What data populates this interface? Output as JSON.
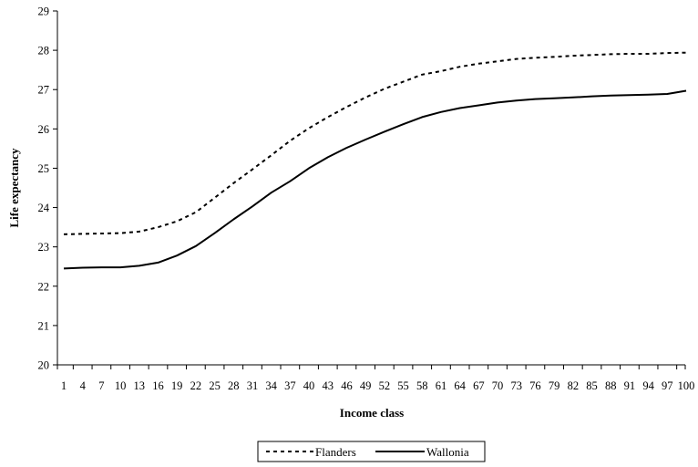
{
  "chart_data": {
    "type": "line",
    "xlabel": "Income class",
    "ylabel": "Life expectancy",
    "xlim": [
      1,
      100
    ],
    "ylim": [
      20,
      29
    ],
    "x_ticks": [
      "1",
      "4",
      "7",
      "10",
      "13",
      "16",
      "19",
      "22",
      "25",
      "28",
      "31",
      "34",
      "37",
      "40",
      "43",
      "46",
      "49",
      "52",
      "55",
      "58",
      "61",
      "64",
      "67",
      "70",
      "73",
      "76",
      "79",
      "82",
      "85",
      "88",
      "91",
      "94",
      "97",
      "100"
    ],
    "y_ticks": [
      "20",
      "21",
      "22",
      "23",
      "24",
      "25",
      "26",
      "27",
      "28",
      "29"
    ],
    "grid": false,
    "legend_position": "bottom",
    "x": [
      1,
      4,
      7,
      10,
      13,
      16,
      19,
      22,
      25,
      28,
      31,
      34,
      37,
      40,
      43,
      46,
      49,
      52,
      55,
      58,
      61,
      64,
      67,
      70,
      73,
      76,
      79,
      82,
      85,
      88,
      91,
      94,
      97,
      100
    ],
    "series": [
      {
        "name": "Flanders",
        "line_style": "dashed",
        "color": "#000000",
        "values": [
          23.32,
          23.33,
          23.34,
          23.35,
          23.39,
          23.5,
          23.65,
          23.88,
          24.25,
          24.62,
          24.97,
          25.33,
          25.7,
          26.02,
          26.3,
          26.56,
          26.8,
          27.02,
          27.2,
          27.38,
          27.47,
          27.58,
          27.66,
          27.72,
          27.78,
          27.81,
          27.83,
          27.86,
          27.88,
          27.9,
          27.91,
          27.91,
          27.93,
          27.94
        ]
      },
      {
        "name": "Wallonia",
        "line_style": "solid",
        "color": "#000000",
        "values": [
          22.45,
          22.47,
          22.48,
          22.48,
          22.52,
          22.6,
          22.78,
          23.02,
          23.35,
          23.7,
          24.03,
          24.38,
          24.67,
          25.0,
          25.28,
          25.52,
          25.73,
          25.93,
          26.12,
          26.3,
          26.43,
          26.53,
          26.6,
          26.67,
          26.72,
          26.76,
          26.78,
          26.8,
          26.83,
          26.85,
          26.86,
          26.87,
          26.89,
          26.97
        ]
      }
    ]
  }
}
